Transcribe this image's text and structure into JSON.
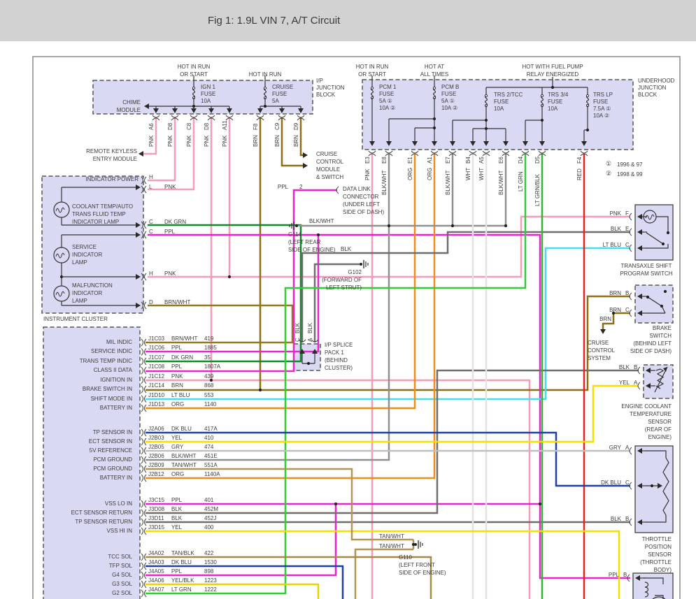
{
  "title": "Fig 1: 1.9L VIN 7, A/T Circuit",
  "legend": [
    {
      "mark": "①",
      "label": "1996 & 97"
    },
    {
      "mark": "②",
      "label": "1998 & 99"
    }
  ],
  "ip_block": {
    "name": [
      "I/P",
      "JUNCTION",
      "BLOCK"
    ],
    "chime": [
      "CHIME",
      "MODULE"
    ],
    "feeds": [
      [
        "HOT IN RUN",
        "OR START"
      ],
      [
        "HOT IN RUN"
      ]
    ],
    "fuses": [
      [
        "IGN 1",
        "FUSE",
        "10A"
      ],
      [
        "CRUISE",
        "FUSE",
        "5A"
      ]
    ],
    "pins": [
      {
        "id": "A6",
        "color": "PNK"
      },
      {
        "id": "D8",
        "color": "PNK"
      },
      {
        "id": "C8",
        "color": "PNK"
      },
      {
        "id": "D8",
        "color": "PNK"
      },
      {
        "id": "A11",
        "color": "PNK"
      },
      {
        "id": "F8",
        "color": "BRN"
      },
      {
        "id": "C9",
        "color": "BRN"
      },
      {
        "id": "D9",
        "color": "BRN"
      }
    ]
  },
  "uh_block": {
    "name": [
      "UNDERHOOD",
      "JUNCTION",
      "BLOCK"
    ],
    "feeds": [
      [
        "HOT IN RUN",
        "OR START"
      ],
      [
        "HOT AT",
        "ALL TIMES"
      ],
      [
        "HOT WITH FUEL PUMP",
        "RELAY ENERGIZED"
      ]
    ],
    "fuses": [
      [
        "PCM 1",
        "FUSE",
        "5A ①",
        "10A ②"
      ],
      [
        "PCM B",
        "FUSE",
        "5A ①",
        "10A ②"
      ],
      [
        "TRS 2/TCC",
        "FUSE",
        "10A"
      ],
      [
        "TRS 3/4",
        "FUSE",
        "10A"
      ],
      [
        "TRS LP",
        "FUSE",
        "7.5A ①",
        "10A ②"
      ]
    ],
    "pins": [
      {
        "id": "E3",
        "color": "PNK"
      },
      {
        "id": "E8",
        "color": "BLK/WHT"
      },
      {
        "id": "E1",
        "color": "ORG"
      },
      {
        "id": "A1",
        "color": "ORG"
      },
      {
        "id": "E7",
        "color": "BLK/WHT"
      },
      {
        "id": "B4",
        "color": "WHT"
      },
      {
        "id": "A5",
        "color": "WHT"
      },
      {
        "id": "E6",
        "color": "BLK/WHT"
      },
      {
        "id": "D4",
        "color": "LT GRN"
      },
      {
        "id": "D5",
        "color": "LT GRN/BLK"
      },
      {
        "id": "F4",
        "color": "RED"
      }
    ]
  },
  "modules": {
    "remote_keyless": [
      "REMOTE KEYLESS",
      "ENTRY MODULE"
    ],
    "cruise_module": [
      "CRUISE",
      "CONTROL",
      "MODULE",
      "& SWITCH"
    ],
    "data_link": {
      "wire": "PPL",
      "pin": "2",
      "lines": [
        "DATA LINK",
        "CONNECTOR",
        "(UNDER LEFT",
        "SIDE OF DASH)"
      ]
    },
    "cruise_system": [
      "CRUISE",
      "CONTROL",
      "SYSTEM"
    ],
    "splice": {
      "lines": [
        "I/P SPLICE",
        "PACK 1",
        "(BEHIND",
        "CLUSTER)"
      ],
      "pins": [
        {
          "id": "C",
          "color": "BLK"
        },
        {
          "id": "A",
          "color": "BLK"
        }
      ]
    }
  },
  "grounds": {
    "g114": {
      "wire": "BLK/WHT",
      "lines": [
        "G114",
        "(LEFT REAR",
        "SIDE OF ENGINE)"
      ]
    },
    "g102": {
      "wire": "BLK",
      "lines": [
        "G102",
        "(FORWARD OF",
        "LEFT STRUT)"
      ]
    },
    "g110": {
      "wires": [
        "TAN/WHT",
        "TAN/WHT"
      ],
      "lines": [
        "G110",
        "(LEFT FRONT",
        "SIDE OF ENGINE)"
      ]
    }
  },
  "cluster": {
    "caption": "INSTRUMENT CLUSTER",
    "power_label": "INDICATOR POWER",
    "power_pins": [
      {
        "id": "H",
        "color": ""
      },
      {
        "id": "L",
        "color": "PNK"
      }
    ],
    "lamps": [
      {
        "lines": [
          "COOLANT TEMP/AUTO",
          "TRANS FLUID TEMP",
          "INDICATOR LAMP"
        ]
      },
      {
        "lines": [
          "SERVICE",
          "INDICATOR",
          "LAMP"
        ]
      },
      {
        "lines": [
          "MALFUNCTION",
          "INDICATOR",
          "LAMP"
        ]
      }
    ],
    "out_pins": [
      {
        "id": "C",
        "color": "DK GRN"
      },
      {
        "id": "C",
        "color": "PPL"
      },
      {
        "id": "H",
        "color": "PNK"
      },
      {
        "id": "D",
        "color": "BRN/WHT"
      }
    ]
  },
  "pcm": {
    "groups": [
      {
        "rows": [
          {
            "label": "MIL INDIC",
            "pin": "J1C03",
            "color": "BRN/WHT",
            "circuit": "419"
          },
          {
            "label": "SERVICE INDIC",
            "pin": "J1C06",
            "color": "PPL",
            "circuit": "1885"
          },
          {
            "label": "TRANS TEMP INDIC",
            "pin": "J1C07",
            "color": "DK GRN",
            "circuit": "35"
          },
          {
            "label": "CLASS II DATA",
            "pin": "J1C08",
            "color": "PPL",
            "circuit": "1807A"
          },
          {
            "label": "IGNITION IN",
            "pin": "J1C12",
            "color": "PNK",
            "circuit": "439"
          },
          {
            "label": "BRAKE SWITCH IN",
            "pin": "J1C14",
            "color": "BRN",
            "circuit": "868"
          },
          {
            "label": "SHIFT MODE IN",
            "pin": "J1D10",
            "color": "LT BLU",
            "circuit": "553"
          },
          {
            "label": "BATTERY IN",
            "pin": "J1D13",
            "color": "ORG",
            "circuit": "1140"
          }
        ]
      },
      {
        "rows": [
          {
            "label": "TP SENSOR IN",
            "pin": "J2A06",
            "color": "DK BLU",
            "circuit": "417A"
          },
          {
            "label": "ECT SENSOR IN",
            "pin": "J2B03",
            "color": "YEL",
            "circuit": "410"
          },
          {
            "label": "5V REFERENCE",
            "pin": "J2B05",
            "color": "GRY",
            "circuit": "474"
          },
          {
            "label": "PCM GROUND",
            "pin": "J2B06",
            "color": "BLK/WHT",
            "circuit": "451E"
          },
          {
            "label": "PCM GROUND",
            "pin": "J2B09",
            "color": "TAN/WHT",
            "circuit": "551A"
          },
          {
            "label": "BATTERY IN",
            "pin": "J2B12",
            "color": "ORG",
            "circuit": "1140A"
          }
        ]
      },
      {
        "rows": [
          {
            "label": "VSS LO IN",
            "pin": "J3C15",
            "color": "PPL",
            "circuit": "401"
          },
          {
            "label": "ECT SENSOR RETURN",
            "pin": "J3D08",
            "color": "BLK",
            "circuit": "452M"
          },
          {
            "label": "TP SENSOR RETURN",
            "pin": "J3D11",
            "color": "BLK",
            "circuit": "452J"
          },
          {
            "label": "VSS HI IN",
            "pin": "J3D15",
            "color": "YEL",
            "circuit": "400"
          }
        ]
      },
      {
        "rows": [
          {
            "label": "TCC SOL",
            "pin": "J4A02",
            "color": "TAN/BLK",
            "circuit": "422"
          },
          {
            "label": "TFP SOL",
            "pin": "J4A03",
            "color": "DK BLU",
            "circuit": "1530"
          },
          {
            "label": "G4 SOL",
            "pin": "J4A05",
            "color": "PPL",
            "circuit": "898"
          },
          {
            "label": "G3 SOL",
            "pin": "J4A06",
            "color": "YEL/BLK",
            "circuit": "1223"
          },
          {
            "label": "G2 SOL",
            "pin": "J4A07",
            "color": "LT GRN",
            "circuit": "1222"
          }
        ]
      }
    ]
  },
  "right": {
    "transaxle": {
      "lines": [
        "TRANSAXLE SHIFT",
        "PROGRAM SWITCH"
      ],
      "pins": [
        {
          "id": "F",
          "color": "PNK"
        },
        {
          "id": "E",
          "color": "BLK"
        },
        {
          "id": "C",
          "color": "LT BLU"
        }
      ]
    },
    "brake": {
      "lines": [
        "BRAKE",
        "SWITCH",
        "(BEHIND LEFT",
        "SIDE OF DASH)"
      ],
      "pins": [
        {
          "id": "B",
          "color": "BRN"
        },
        {
          "id": "C",
          "color": "BRN"
        }
      ],
      "branch_color": "BRN"
    },
    "ect": {
      "lines": [
        "ENGINE COOLANT",
        "TEMPERATURE",
        "SENSOR",
        "(REAR OF",
        "ENGINE)"
      ],
      "pins": [
        {
          "id": "B",
          "color": "BLK"
        },
        {
          "id": "A",
          "color": "YEL"
        }
      ]
    },
    "tps": {
      "lines": [
        "THROTTLE",
        "POSITION",
        "SENSOR",
        "(THROTTLE",
        "BODY)"
      ],
      "pins": [
        {
          "id": "A",
          "color": "GRY"
        },
        {
          "id": "C",
          "color": "DK BLU"
        },
        {
          "id": "B",
          "color": "BLK"
        }
      ]
    },
    "vss": {
      "pins": [
        {
          "id": "B",
          "color": "PPL"
        }
      ]
    }
  },
  "wire_colors": {
    "PNK": "#f79bb8",
    "BRN": "#8f6f14",
    "BRN/WHT": "#97781f",
    "PPL": "#ee22cc",
    "DK GRN": "#0e8a28",
    "LT BLU": "#44dde8",
    "ORG": "#f08c1e",
    "BLK/WHT": "#909090",
    "BLK": "#6e6e6e",
    "WHT": "#e2e2e2",
    "LT GRN": "#33cc33",
    "LT GRN/BLK": "#2db82d",
    "RED": "#e82222",
    "DK BLU": "#1f3fa8",
    "YEL": "#f5df00",
    "YEL/BLK": "#e8d200",
    "GRY": "#bfbfbf",
    "TAN/WHT": "#b59354",
    "TAN/BLK": "#a8874a"
  },
  "box_fill": "#d9d9f3"
}
